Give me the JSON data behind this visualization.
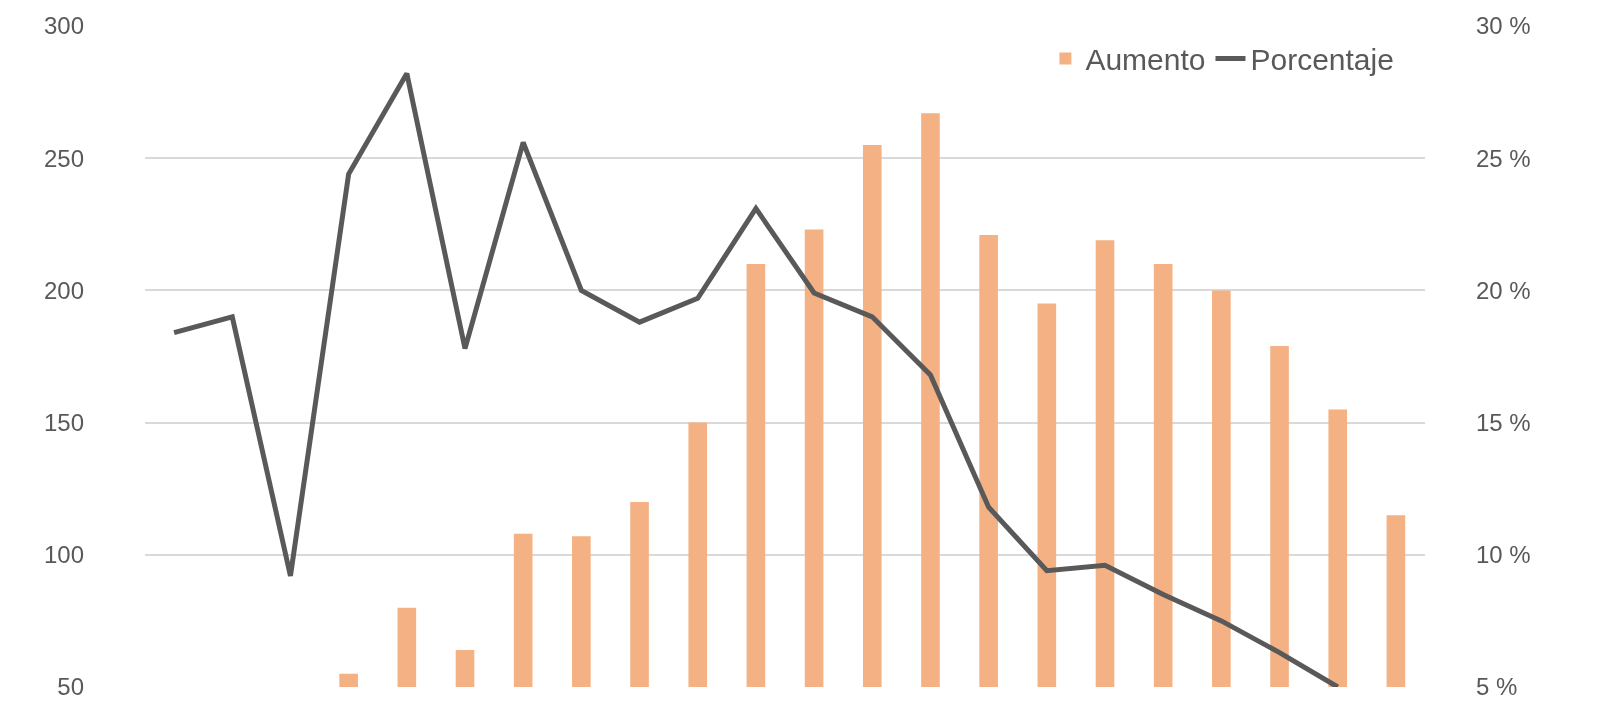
{
  "chart_data": {
    "type": "bar",
    "categories": [
      null,
      null,
      null,
      null,
      null,
      null,
      null,
      null,
      null,
      null,
      null,
      null,
      null,
      null,
      null,
      null,
      null,
      null,
      null,
      null,
      null,
      null
    ],
    "series": [
      {
        "name": "Aumento",
        "color": "#f4b183",
        "values": [
          null,
          null,
          null,
          55,
          80,
          64,
          108,
          107,
          120,
          150,
          210,
          223,
          255,
          267,
          221,
          195,
          219,
          210,
          200,
          179,
          155,
          115
        ]
      },
      {
        "name": "Porcentaje",
        "type": "line",
        "axis": "y2",
        "color": "#595959",
        "values": [
          18.4,
          19.0,
          9.2,
          24.4,
          28.2,
          17.8,
          25.6,
          20.0,
          18.8,
          19.7,
          23.1,
          19.9,
          19.0,
          16.8,
          11.8,
          9.4,
          9.6,
          8.5,
          7.5,
          6.3,
          5.0,
          null
        ]
      }
    ],
    "ylim": [
      50,
      300
    ],
    "yticks": [
      50,
      100,
      150,
      200,
      250,
      300
    ],
    "y2lim": [
      5,
      30
    ],
    "y2ticks": [
      {
        "value": 5,
        "label": "5 %"
      },
      {
        "value": 10,
        "label": "10 %"
      },
      {
        "value": 15,
        "label": "15 %"
      },
      {
        "value": 20,
        "label": "20 %"
      },
      {
        "value": 25,
        "label": "25 %"
      },
      {
        "value": 30,
        "label": "30 %"
      }
    ],
    "grid": "y",
    "legend": "top right",
    "marker": "none",
    "line_style": "solid"
  }
}
